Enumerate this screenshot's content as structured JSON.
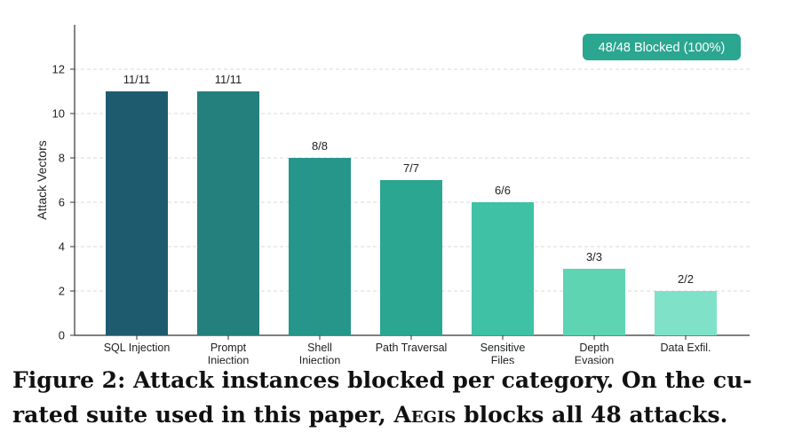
{
  "chart_data": {
    "type": "bar",
    "title": "",
    "xlabel": "",
    "ylabel": "Attack Vectors",
    "ylim": [
      0,
      14
    ],
    "yticks": [
      0,
      2,
      4,
      6,
      8,
      10,
      12
    ],
    "grid": "horizontal dashed",
    "categories": [
      [
        "SQL Injection"
      ],
      [
        "Prompt",
        "Injection"
      ],
      [
        "Shell",
        "Injection"
      ],
      [
        "Path Traversal"
      ],
      [
        "Sensitive",
        "Files"
      ],
      [
        "Depth",
        "Evasion"
      ],
      [
        "Data Exfil."
      ]
    ],
    "values": [
      11,
      11,
      8,
      7,
      6,
      3,
      2
    ],
    "data_labels": [
      "11/11",
      "11/11",
      "8/8",
      "7/7",
      "6/6",
      "3/3",
      "2/2"
    ],
    "colors": [
      "#1f5b6e",
      "#23807d",
      "#26958a",
      "#2ba690",
      "#3ec1a4",
      "#5ed4b2",
      "#7ee1c8"
    ],
    "annotation": {
      "text": "48/48 Blocked (100%)",
      "color": "#2ba690",
      "placement": "top-right"
    }
  },
  "caption": {
    "prefix": "Figure 2: Attack instances blocked per category. On the cu- rated suite used in this paper, ",
    "system_name": "Aegis",
    "suffix": " blocks all 48 attacks."
  }
}
